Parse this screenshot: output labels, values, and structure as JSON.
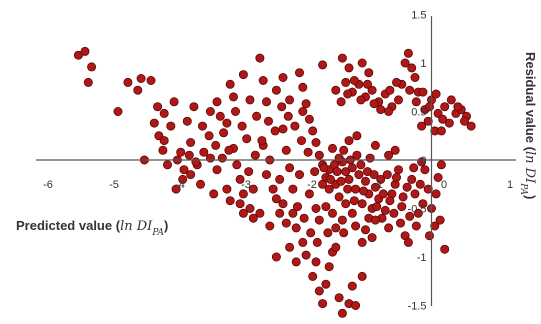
{
  "chart_data": {
    "type": "scatter",
    "title": "",
    "xlabel": {
      "text": "Predicted value",
      "paren_open": "(",
      "math": "ln DI",
      "sub": "PA",
      "paren_close": ")"
    },
    "ylabel": {
      "text": "Residual value",
      "paren_open": "(",
      "math": "ln DI",
      "sub": "PA",
      "paren_close": ")"
    },
    "xlim": [
      -6.2,
      1.0
    ],
    "ylim": [
      -1.6,
      1.5
    ],
    "x_ticks": [
      "-6",
      "-5",
      "-4",
      "-3",
      "-2",
      "-1",
      "0",
      "1"
    ],
    "y_ticks": [
      "1.5",
      "1",
      "0.5",
      "0",
      "-0.5",
      "-1",
      "-1.5"
    ],
    "grid": false,
    "legend": "none",
    "marker_color": "#b01818",
    "marker_edge_color": "#5a0606",
    "series": [
      {
        "points": [
          [
            -5.6,
            1.08
          ],
          [
            -5.5,
            1.12
          ],
          [
            -5.4,
            0.96
          ],
          [
            -5.45,
            0.8
          ],
          [
            -5.0,
            0.5
          ],
          [
            -4.85,
            0.8
          ],
          [
            -4.65,
            0.84
          ],
          [
            -4.5,
            0.82
          ],
          [
            -4.7,
            0.72
          ],
          [
            -4.4,
            0.55
          ],
          [
            -4.45,
            0.38
          ],
          [
            -4.38,
            0.25
          ],
          [
            -4.3,
            0.2
          ],
          [
            -4.32,
            0.1
          ],
          [
            -4.1,
            0.0
          ],
          [
            -4.2,
            0.35
          ],
          [
            -3.95,
            0.4
          ],
          [
            -3.85,
            0.55
          ],
          [
            -3.7,
            0.08
          ],
          [
            -3.8,
            -0.05
          ],
          [
            -3.6,
            0.02
          ],
          [
            -3.9,
            -0.15
          ],
          [
            -4.0,
            -0.1
          ],
          [
            -3.75,
            -0.25
          ],
          [
            -3.5,
            -0.1
          ],
          [
            -3.4,
            0.28
          ],
          [
            -3.35,
            0.38
          ],
          [
            -3.25,
            0.12
          ],
          [
            -3.2,
            -0.05
          ],
          [
            -3.15,
            -0.2
          ],
          [
            -3.1,
            -0.35
          ],
          [
            -3.0,
            -0.5
          ],
          [
            -2.95,
            -0.6
          ],
          [
            -3.05,
            0.22
          ],
          [
            -2.9,
            0.45
          ],
          [
            -2.85,
            1.05
          ],
          [
            -2.8,
            0.15
          ],
          [
            -2.7,
            0.0
          ],
          [
            -2.65,
            -0.3
          ],
          [
            -2.6,
            -0.4
          ],
          [
            -2.5,
            0.32
          ],
          [
            -2.45,
            0.1
          ],
          [
            -2.4,
            -0.08
          ],
          [
            -2.35,
            -0.55
          ],
          [
            -2.3,
            -0.7
          ],
          [
            -2.25,
            0.9
          ],
          [
            -2.2,
            0.75
          ],
          [
            -2.15,
            0.58
          ],
          [
            -2.1,
            0.42
          ],
          [
            -2.05,
            0.3
          ],
          [
            -2.0,
            0.18
          ],
          [
            -1.95,
            0.05
          ],
          [
            -1.9,
            -0.05
          ],
          [
            -1.85,
            -0.18
          ],
          [
            -1.8,
            -0.1
          ],
          [
            -1.75,
            0.12
          ],
          [
            -1.7,
            -0.25
          ],
          [
            -1.65,
            -0.38
          ],
          [
            -1.6,
            -0.02
          ],
          [
            -1.55,
            -0.12
          ],
          [
            -1.5,
            -0.2
          ],
          [
            -1.45,
            -0.08
          ],
          [
            -1.4,
            -0.3
          ],
          [
            -1.35,
            -0.15
          ],
          [
            -1.3,
            -0.45
          ],
          [
            -1.25,
            -0.22
          ],
          [
            -1.2,
            -0.35
          ],
          [
            -1.15,
            -0.5
          ],
          [
            -1.1,
            -0.28
          ],
          [
            -1.05,
            -0.4
          ],
          [
            -1.0,
            -0.6
          ],
          [
            -0.95,
            -0.52
          ],
          [
            -0.9,
            -0.7
          ],
          [
            -0.85,
            -0.35
          ],
          [
            -0.8,
            -0.25
          ],
          [
            -0.75,
            -0.1
          ],
          [
            -0.7,
            -0.48
          ],
          [
            -0.65,
            -0.78
          ],
          [
            -0.6,
            -0.85
          ],
          [
            -0.55,
            -0.2
          ],
          [
            -0.5,
            -0.35
          ],
          [
            -0.45,
            -0.55
          ],
          [
            -0.4,
            -0.02
          ],
          [
            -0.35,
            -0.1
          ],
          [
            -0.3,
            -0.3
          ],
          [
            -0.25,
            -0.5
          ],
          [
            -0.2,
            -0.68
          ],
          [
            -0.15,
            -0.18
          ],
          [
            -0.1,
            -0.05
          ],
          [
            -0.05,
            -0.92
          ],
          [
            -1.7,
            0.72
          ],
          [
            -1.55,
            0.8
          ],
          [
            -1.45,
            0.7
          ],
          [
            -1.35,
            0.78
          ],
          [
            -1.25,
            0.65
          ],
          [
            -1.15,
            0.72
          ],
          [
            -1.05,
            0.6
          ],
          [
            -0.95,
            0.68
          ],
          [
            -0.85,
            0.55
          ],
          [
            -0.75,
            0.62
          ],
          [
            -0.7,
            0.78
          ],
          [
            -0.65,
            1.0
          ],
          [
            -0.6,
            1.1
          ],
          [
            -0.55,
            0.95
          ],
          [
            -0.5,
            0.85
          ],
          [
            -0.45,
            0.7
          ],
          [
            -0.35,
            0.52
          ],
          [
            -0.25,
            0.62
          ],
          [
            -0.15,
            0.48
          ],
          [
            -0.05,
            0.55
          ],
          [
            0.05,
            0.62
          ],
          [
            0.12,
            0.48
          ],
          [
            0.2,
            0.52
          ],
          [
            0.28,
            0.45
          ],
          [
            0.35,
            0.35
          ],
          [
            -0.2,
            0.3
          ],
          [
            -0.4,
            0.35
          ],
          [
            -0.3,
            0.4
          ],
          [
            -0.1,
            0.3
          ],
          [
            -0.9,
            0.5
          ],
          [
            -1.5,
            0.95
          ],
          [
            -1.2,
            0.9
          ],
          [
            -1.3,
            1.0
          ],
          [
            -1.6,
            1.05
          ],
          [
            -1.9,
            0.98
          ],
          [
            -2.2,
            0.5
          ],
          [
            -2.4,
            0.62
          ],
          [
            -2.6,
            0.72
          ],
          [
            -2.75,
            0.6
          ],
          [
            -3.0,
            0.62
          ],
          [
            -3.3,
            0.78
          ],
          [
            -3.5,
            0.6
          ],
          [
            -3.6,
            0.5
          ],
          [
            -3.45,
            0.45
          ],
          [
            -3.25,
            0.65
          ],
          [
            -4.15,
            0.6
          ],
          [
            -4.3,
            0.48
          ],
          [
            -3.9,
            0.18
          ],
          [
            -4.05,
            0.08
          ],
          [
            -3.55,
            -0.35
          ],
          [
            -3.3,
            -0.42
          ],
          [
            -3.1,
            -0.55
          ],
          [
            -2.85,
            -0.55
          ],
          [
            -2.7,
            -0.68
          ],
          [
            -2.5,
            -0.45
          ],
          [
            -2.4,
            -0.9
          ],
          [
            -2.3,
            -1.05
          ],
          [
            -2.2,
            -0.85
          ],
          [
            -2.15,
            -0.98
          ],
          [
            -2.05,
            -1.2
          ],
          [
            -2.0,
            -1.05
          ],
          [
            -1.95,
            -1.35
          ],
          [
            -1.9,
            -1.48
          ],
          [
            -1.85,
            -1.28
          ],
          [
            -1.8,
            -1.1
          ],
          [
            -1.75,
            -0.95
          ],
          [
            -1.65,
            -1.42
          ],
          [
            -1.6,
            -1.58
          ],
          [
            -1.5,
            -1.48
          ],
          [
            -1.45,
            -1.3
          ],
          [
            -1.4,
            -1.5
          ],
          [
            -1.3,
            -1.2
          ],
          [
            -1.3,
            -0.85
          ],
          [
            -1.2,
            -0.6
          ],
          [
            -2.6,
            -1.0
          ],
          [
            -2.55,
            -0.2
          ],
          [
            -2.35,
            -0.3
          ],
          [
            -2.25,
            -0.15
          ],
          [
            -2.1,
            -0.35
          ],
          [
            -2.0,
            -0.5
          ],
          [
            -1.95,
            -0.62
          ],
          [
            -1.85,
            -0.48
          ],
          [
            -1.75,
            -0.55
          ],
          [
            -1.7,
            -0.7
          ],
          [
            -1.6,
            -0.62
          ],
          [
            -1.55,
            -0.45
          ],
          [
            -1.45,
            -0.55
          ],
          [
            -1.4,
            -0.68
          ],
          [
            -1.25,
            -0.72
          ],
          [
            -1.15,
            -0.8
          ],
          [
            -1.1,
            -0.62
          ],
          [
            -1.9,
            -0.25
          ],
          [
            -1.8,
            -0.3
          ],
          [
            -1.72,
            -0.05
          ],
          [
            -1.65,
            0.02
          ],
          [
            -1.58,
            0.1
          ],
          [
            -1.52,
            -0.3
          ],
          [
            -1.48,
            0.0
          ],
          [
            -1.42,
            -0.42
          ],
          [
            -1.38,
            0.05
          ],
          [
            -1.32,
            -0.05
          ],
          [
            -1.28,
            -0.32
          ],
          [
            -1.22,
            -0.12
          ],
          [
            -1.18,
            0.02
          ],
          [
            -1.12,
            -0.15
          ],
          [
            -1.08,
            -0.48
          ],
          [
            -1.02,
            -0.2
          ],
          [
            -0.98,
            -0.35
          ],
          [
            -0.92,
            -0.15
          ],
          [
            -0.88,
            -0.42
          ],
          [
            -0.82,
            -0.55
          ],
          [
            -1.62,
            -0.22
          ],
          [
            -1.68,
            -0.12
          ],
          [
            -1.78,
            -0.2
          ],
          [
            -1.88,
            -0.08
          ],
          [
            -2.02,
            -0.12
          ],
          [
            -2.12,
            0.08
          ],
          [
            -2.22,
            0.2
          ],
          [
            -2.32,
            0.35
          ],
          [
            -2.42,
            0.45
          ],
          [
            -2.52,
            0.55
          ],
          [
            -2.62,
            0.3
          ],
          [
            -2.72,
            0.4
          ],
          [
            -2.82,
            0.2
          ],
          [
            -2.92,
            0.05
          ],
          [
            -3.02,
            -0.12
          ],
          [
            -3.12,
            0.35
          ],
          [
            -3.22,
            0.5
          ],
          [
            -3.32,
            0.1
          ],
          [
            -3.42,
            0.02
          ],
          [
            -3.52,
            0.15
          ],
          [
            -3.62,
            0.25
          ],
          [
            -3.72,
            0.35
          ],
          [
            -3.82,
            -0.02
          ],
          [
            -3.92,
            0.05
          ],
          [
            -4.02,
            -0.2
          ],
          [
            -4.12,
            -0.3
          ],
          [
            -3.35,
            -0.3
          ],
          [
            -3.15,
            -0.45
          ],
          [
            -2.95,
            -0.3
          ],
          [
            -2.75,
            -0.15
          ],
          [
            -2.55,
            -0.55
          ],
          [
            -2.45,
            -0.65
          ],
          [
            -2.28,
            -0.48
          ],
          [
            -2.18,
            -0.6
          ],
          [
            -2.08,
            -0.75
          ],
          [
            -1.98,
            -0.85
          ],
          [
            -1.82,
            -0.75
          ],
          [
            -1.7,
            -0.9
          ],
          [
            -1.58,
            -0.75
          ],
          [
            -0.58,
            -0.58
          ],
          [
            -0.48,
            -0.68
          ],
          [
            -0.38,
            -0.45
          ],
          [
            -0.28,
            -0.78
          ],
          [
            -0.18,
            -0.35
          ],
          [
            -0.12,
            -0.62
          ],
          [
            -0.42,
            -0.25
          ],
          [
            -0.52,
            -0.08
          ],
          [
            -0.62,
            -0.28
          ],
          [
            -0.72,
            -0.65
          ],
          [
            -0.78,
            -0.18
          ],
          [
            -0.68,
            -0.38
          ],
          [
            -1.02,
            0.52
          ],
          [
            -1.12,
            0.58
          ],
          [
            -1.22,
            0.78
          ],
          [
            -1.32,
            0.62
          ],
          [
            -1.42,
            0.82
          ],
          [
            -1.52,
            0.68
          ],
          [
            -1.62,
            0.6
          ],
          [
            -0.88,
            0.72
          ],
          [
            -0.78,
            0.8
          ],
          [
            -0.58,
            0.72
          ],
          [
            -0.48,
            0.6
          ],
          [
            -0.38,
            0.7
          ],
          [
            -0.28,
            0.55
          ],
          [
            -0.18,
            0.68
          ],
          [
            -0.08,
            0.42
          ],
          [
            0.02,
            0.38
          ],
          [
            0.15,
            0.55
          ],
          [
            0.25,
            0.4
          ],
          [
            -1.5,
            0.2
          ],
          [
            -1.38,
            0.25
          ],
          [
            -1.1,
            0.15
          ],
          [
            -0.9,
            0.05
          ],
          [
            -0.8,
            0.1
          ],
          [
            -2.5,
            0.85
          ],
          [
            -2.8,
            0.82
          ],
          [
            -3.1,
            0.88
          ],
          [
            -4.6,
            0.0
          ],
          [
            -4.25,
            -0.05
          ]
        ]
      }
    ]
  }
}
